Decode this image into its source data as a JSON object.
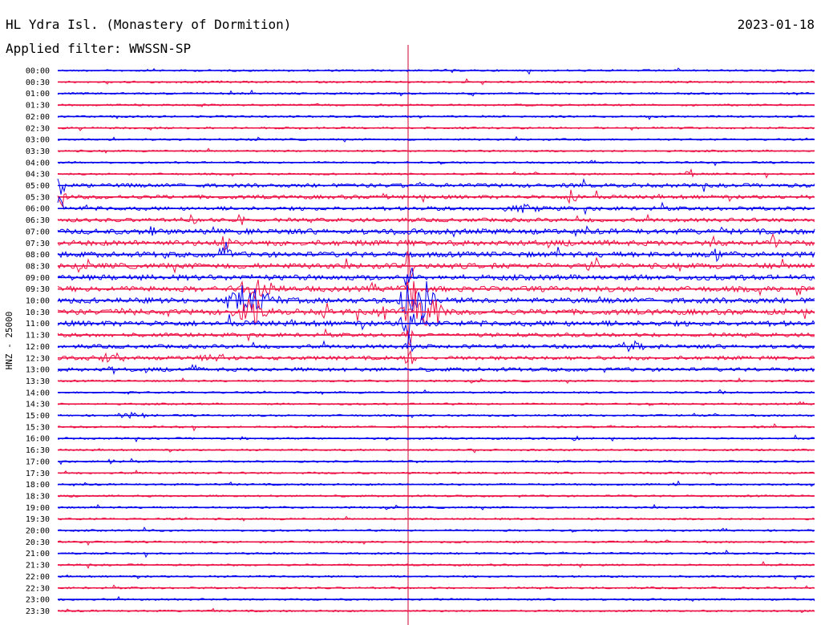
{
  "header": {
    "station": "HL Ydra Isl. (Monastery of Dormition)",
    "date": "2023-01-18",
    "filter": "Applied filter: WWSSN-SP"
  },
  "colors": {
    "trace_a": "#0000ee",
    "trace_b": "#ee1144",
    "marker": "#cc0033",
    "text": "#000000"
  },
  "chart_data": {
    "type": "line",
    "title": "HL Ydra Isl. (Monastery of Dormition)",
    "date": "2023-01-18",
    "filter": "Applied filter: WWSSN-SP",
    "ylabel": "HNZ - 25000",
    "row_labels": [
      "00:00",
      "00:30",
      "01:00",
      "01:30",
      "02:00",
      "02:30",
      "03:00",
      "03:30",
      "04:00",
      "04:30",
      "05:00",
      "05:30",
      "06:00",
      "06:30",
      "07:00",
      "07:30",
      "08:00",
      "08:30",
      "09:00",
      "09:30",
      "10:00",
      "10:30",
      "11:00",
      "11:30",
      "12:00",
      "12:30",
      "13:00",
      "13:30",
      "14:00",
      "14:30",
      "15:00",
      "15:30",
      "16:00",
      "16:30",
      "17:00",
      "17:30",
      "18:00",
      "18:30",
      "19:00",
      "19:30",
      "20:00",
      "20:30",
      "21:00",
      "21:30",
      "22:00",
      "22:30",
      "23:00",
      "23:30"
    ],
    "row_colors": [
      "trace_a",
      "trace_b"
    ],
    "row_minutes": 30,
    "grid": false
  }
}
